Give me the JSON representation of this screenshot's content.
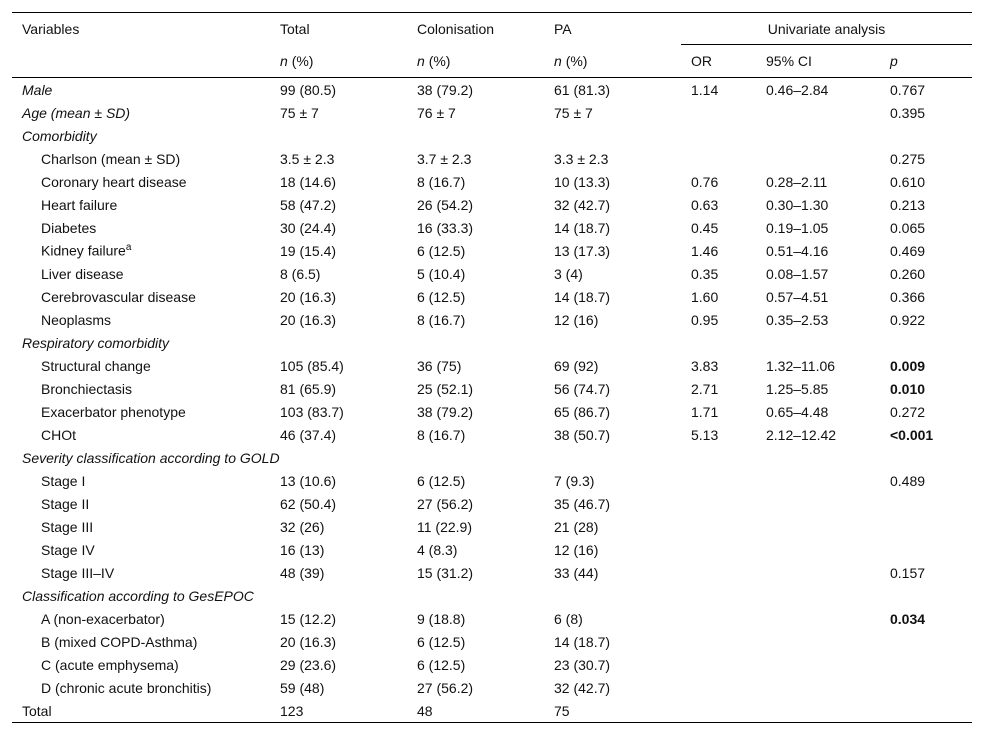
{
  "table": {
    "header": {
      "variables": "Variables",
      "total": "Total",
      "colonisation": "Colonisation",
      "pa": "PA",
      "group": "Univariate analysis",
      "n": "n",
      "pct": "(%)",
      "or": "OR",
      "ci": "95% CI",
      "p": "p"
    },
    "rows": [
      {
        "variable": "Male",
        "total": "99 (80.5)",
        "colonisation": "38 (79.2)",
        "pa": "61 (81.3)",
        "or": "1.14",
        "ci": "0.46–2.84",
        "p": {
          "text": "0.767"
        }
      },
      {
        "variable": "Age (mean ± SD)",
        "total": "75 ± 7",
        "colonisation": "76 ± 7",
        "pa": "75 ± 7",
        "p": {
          "text": "0.395"
        }
      },
      {
        "heading": "Comorbidity",
        "rows": [
          {
            "variable": "Charlson (mean ± SD)",
            "total": "3.5 ± 2.3",
            "colonisation": "3.7 ± 2.3",
            "pa": "3.3 ± 2.3",
            "p": {
              "text": "0.275"
            }
          },
          {
            "variable": "Coronary heart disease",
            "total": "18 (14.6)",
            "colonisation": "8 (16.7)",
            "pa": "10 (13.3)",
            "or": "0.76",
            "ci": "0.28–2.11",
            "p": {
              "text": "0.610"
            }
          },
          {
            "variable": "Heart failure",
            "total": "58 (47.2)",
            "colonisation": "26 (54.2)",
            "pa": "32 (42.7)",
            "or": "0.63",
            "ci": "0.30–1.30",
            "p": {
              "text": "0.213"
            }
          },
          {
            "variable": "Diabetes",
            "total": "30 (24.4)",
            "colonisation": "16 (33.3)",
            "pa": "14 (18.7)",
            "or": "0.45",
            "ci": "0.19–1.05",
            "p": {
              "text": "0.065"
            }
          },
          {
            "variable": "Kidney failure",
            "note": "a",
            "total": "19 (15.4)",
            "colonisation": "6 (12.5)",
            "pa": "13 (17.3)",
            "or": "1.46",
            "ci": "0.51–4.16",
            "p": {
              "text": "0.469"
            }
          },
          {
            "variable": "Liver disease",
            "total": "8 (6.5)",
            "colonisation": "5 (10.4)",
            "pa": "3 (4)",
            "or": "0.35",
            "ci": "0.08–1.57",
            "p": {
              "text": "0.260"
            }
          },
          {
            "variable": "Cerebrovascular disease",
            "total": "20 (16.3)",
            "colonisation": "6 (12.5)",
            "pa": "14 (18.7)",
            "or": "1.60",
            "ci": "0.57–4.51",
            "p": {
              "text": "0.366"
            }
          },
          {
            "variable": "Neoplasms",
            "total": "20 (16.3)",
            "colonisation": "8 (16.7)",
            "pa": "12 (16)",
            "or": "0.95",
            "ci": "0.35–2.53",
            "p": {
              "text": "0.922"
            }
          }
        ]
      },
      {
        "heading": "Respiratory comorbidity",
        "rows": [
          {
            "variable": "Structural change",
            "total": "105 (85.4)",
            "colonisation": "36 (75)",
            "pa": "69 (92)",
            "or": "3.83",
            "ci": "1.32–11.06",
            "p": {
              "text": "0.009",
              "bold": true
            }
          },
          {
            "variable": "Bronchiectasis",
            "total": "81 (65.9)",
            "colonisation": "25 (52.1)",
            "pa": "56 (74.7)",
            "or": "2.71",
            "ci": "1.25–5.85",
            "p": {
              "text": "0.010",
              "bold": true
            }
          },
          {
            "variable": "Exacerbator phenotype",
            "total": "103 (83.7)",
            "colonisation": "38 (79.2)",
            "pa": "65 (86.7)",
            "or": "1.71",
            "ci": "0.65–4.48",
            "p": {
              "text": "0.272"
            }
          },
          {
            "variable": "CHOt",
            "total": "46 (37.4)",
            "colonisation": "8 (16.7)",
            "pa": "38 (50.7)",
            "or": "5.13",
            "ci": "2.12–12.42",
            "p": {
              "text": "<0.001",
              "bold": true
            }
          }
        ]
      },
      {
        "heading": "Severity classification according to GOLD",
        "rows": [
          {
            "variable": "Stage I",
            "total": "13 (10.6)",
            "colonisation": "6 (12.5)",
            "pa": "7 (9.3)",
            "p": {
              "text": "0.489"
            }
          },
          {
            "variable": "Stage II",
            "total": "62 (50.4)",
            "colonisation": "27 (56.2)",
            "pa": "35 (46.7)"
          },
          {
            "variable": "Stage III",
            "total": "32 (26)",
            "colonisation": "11 (22.9)",
            "pa": "21 (28)"
          },
          {
            "variable": "Stage IV",
            "total": "16 (13)",
            "colonisation": "4 (8.3)",
            "pa": "12 (16)"
          },
          {
            "variable": "Stage III–IV",
            "total": "48 (39)",
            "colonisation": "15 (31.2)",
            "pa": "33 (44)",
            "p": {
              "text": "0.157"
            }
          }
        ]
      },
      {
        "heading": "Classification according to GesEPOC",
        "rows": [
          {
            "variable": "A (non-exacerbator)",
            "total": "15 (12.2)",
            "colonisation": "9 (18.8)",
            "pa": "6 (8)",
            "p": {
              "text": "0.034",
              "bold": true
            }
          },
          {
            "variable": "B (mixed COPD-Asthma)",
            "total": "20 (16.3)",
            "colonisation": "6 (12.5)",
            "pa": "14 (18.7)"
          },
          {
            "variable": "C (acute emphysema)",
            "total": "29 (23.6)",
            "colonisation": "6 (12.5)",
            "pa": "23 (30.7)"
          },
          {
            "variable": "D (chronic acute bronchitis)",
            "total": "59 (48)",
            "colonisation": "27 (56.2)",
            "pa": "32 (42.7)"
          }
        ]
      }
    ],
    "total": {
      "variable": "Total",
      "total": "123",
      "colonisation": "48",
      "pa": "75"
    }
  }
}
